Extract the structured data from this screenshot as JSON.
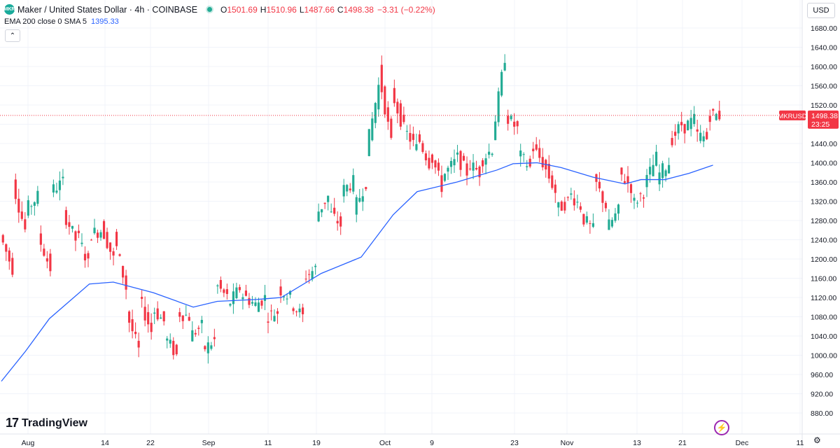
{
  "header": {
    "symbol_logo": "MKR",
    "symbol_title": "Maker / United States Dollar · 4h · COINBASE",
    "ohlc": [
      {
        "label": "O",
        "value": "1501.69"
      },
      {
        "label": "H",
        "value": "1510.96"
      },
      {
        "label": "L",
        "value": "1487.66"
      },
      {
        "label": "C",
        "value": "1498.38"
      }
    ],
    "change": "−3.31 (−0.22%)",
    "market_status_color": "#22ab94"
  },
  "indicator": {
    "name": "EMA 200 close 0 SMA 5",
    "value": "1395.33",
    "collapse_icon": "chevron-up-icon"
  },
  "currency_button": "USD",
  "branding": {
    "logo_text": "TradingView",
    "logo_mark": "17"
  },
  "icons": {
    "bolt": "lightning-icon",
    "settings": "gear-icon"
  },
  "colors": {
    "up": "#22ab94",
    "down": "#f23645",
    "ema": "#2962ff",
    "price_tag": "#f23645"
  },
  "chart_data": {
    "type": "candlestick",
    "price_axis_labels": [
      "1680.00",
      "1640.00",
      "1600.00",
      "1560.00",
      "1520.00",
      "1480.00",
      "1440.00",
      "1400.00",
      "1360.00",
      "1320.00",
      "1280.00",
      "1240.00",
      "1200.00",
      "1160.00",
      "1120.00",
      "1080.00",
      "1040.00",
      "1000.00",
      "960.00",
      "920.00",
      "880.00"
    ],
    "time_axis_labels": [
      "Aug",
      "14",
      "22",
      "Sep",
      "11",
      "19",
      "Oct",
      "9",
      "23",
      "Nov",
      "13",
      "21",
      "Dec",
      "11"
    ],
    "ylim": [
      870,
      1700
    ],
    "last_price": {
      "symbol": "MKRUSD",
      "price": "1498.38",
      "countdown": "23:25"
    },
    "price_path": [
      [
        1250,
        1180
      ],
      [
        1360,
        1260
      ],
      [
        1300,
        1330
      ],
      [
        1250,
        1180
      ],
      [
        1340,
        1360
      ],
      [
        1300,
        1240
      ],
      [
        1260,
        1190
      ],
      [
        1250,
        1260
      ],
      [
        1270,
        1200
      ],
      [
        1250,
        1140
      ],
      [
        1090,
        1010
      ],
      [
        1120,
        1050
      ],
      [
        1100,
        1070
      ],
      [
        1040,
        1000
      ],
      [
        1090,
        1080
      ],
      [
        1040,
        1060
      ],
      [
        1010,
        1030
      ],
      [
        1150,
        1120
      ],
      [
        1100,
        1140
      ],
      [
        1130,
        1110
      ],
      [
        1100,
        1120
      ],
      [
        1080,
        1090
      ],
      [
        1140,
        1120
      ],
      [
        1110,
        1080
      ],
      [
        1160,
        1180
      ],
      [
        1290,
        1330
      ],
      [
        1300,
        1270
      ],
      [
        1340,
        1360
      ],
      [
        1300,
        1360
      ],
      [
        1420,
        1560
      ],
      [
        1590,
        1440
      ],
      [
        1550,
        1470
      ],
      [
        1470,
        1430
      ],
      [
        1460,
        1400
      ],
      [
        1430,
        1350
      ],
      [
        1370,
        1400
      ],
      [
        1420,
        1380
      ],
      [
        1400,
        1380
      ],
      [
        1400,
        1430
      ],
      [
        1450,
        1620
      ],
      [
        1500,
        1470
      ],
      [
        1420,
        1390
      ],
      [
        1440,
        1400
      ],
      [
        1400,
        1340
      ],
      [
        1300,
        1320
      ],
      [
        1340,
        1310
      ],
      [
        1290,
        1260
      ],
      [
        1370,
        1310
      ],
      [
        1260,
        1300
      ],
      [
        1380,
        1350
      ],
      [
        1310,
        1340
      ],
      [
        1350,
        1410
      ],
      [
        1370,
        1400
      ],
      [
        1440,
        1480
      ],
      [
        1470,
        1490
      ],
      [
        1460,
        1450
      ],
      [
        1500,
        1498
      ]
    ],
    "ema200": [
      [
        0,
        946
      ],
      [
        6,
        1008
      ],
      [
        12,
        1076
      ],
      [
        22,
        1148
      ],
      [
        28,
        1152
      ],
      [
        38,
        1130
      ],
      [
        48,
        1100
      ],
      [
        54,
        1112
      ],
      [
        64,
        1116
      ],
      [
        70,
        1120
      ],
      [
        80,
        1170
      ],
      [
        90,
        1204
      ],
      [
        98,
        1292
      ],
      [
        104,
        1340
      ],
      [
        114,
        1360
      ],
      [
        124,
        1385
      ],
      [
        128,
        1398
      ],
      [
        134,
        1400
      ],
      [
        140,
        1390
      ],
      [
        148,
        1370
      ],
      [
        156,
        1356
      ],
      [
        160,
        1365
      ],
      [
        166,
        1365
      ],
      [
        172,
        1378
      ],
      [
        178,
        1395
      ]
    ],
    "x_range": [
      0,
      180
    ]
  }
}
